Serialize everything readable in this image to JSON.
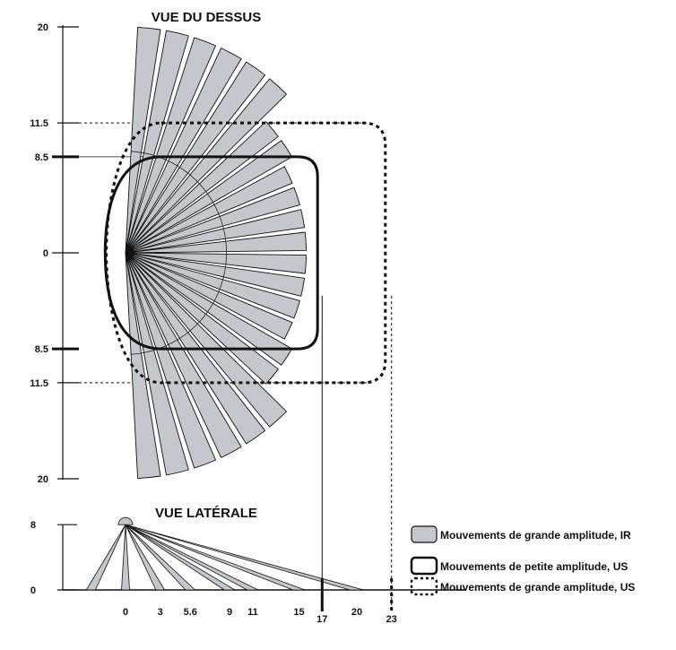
{
  "top_view": {
    "title": "VUE DU DESSUS",
    "y_ticks": [
      {
        "value": 20,
        "label": "20"
      },
      {
        "value": 11.5,
        "label": "11.5"
      },
      {
        "value": 8.5,
        "label": "8.5"
      },
      {
        "value": 0,
        "label": "0"
      },
      {
        "value": -8.5,
        "label": "8.5"
      },
      {
        "value": -11.5,
        "label": "11.5"
      },
      {
        "value": -20,
        "label": "20"
      }
    ],
    "ir_beams": {
      "count": 24,
      "min_angle_deg": -84,
      "max_angle_deg": 84,
      "radii": [
        20,
        20,
        20,
        20,
        20,
        20,
        17,
        17,
        16,
        16,
        16,
        16,
        16,
        16,
        16,
        16,
        17,
        17,
        20,
        20,
        20,
        20,
        20,
        20
      ],
      "mid_arc_radius": 9
    },
    "us_small_range": {
      "forward": 17,
      "half_width": 8.5
    },
    "us_large_range": {
      "forward": 23,
      "half_width": 11.5
    }
  },
  "side_view": {
    "title": "VUE LATÉRALE",
    "sensor_height": 8,
    "y_ticks": [
      {
        "value": 8,
        "label": "8"
      },
      {
        "value": 0,
        "label": "0"
      }
    ],
    "beam_ends": [
      -3,
      0,
      3,
      5.6,
      9,
      11,
      15,
      20
    ],
    "x_ticks": [
      {
        "value": 0,
        "label": "0"
      },
      {
        "value": 3,
        "label": "3"
      },
      {
        "value": 5.6,
        "label": "5.6"
      },
      {
        "value": 9,
        "label": "9"
      },
      {
        "value": 11,
        "label": "11"
      },
      {
        "value": 15,
        "label": "15"
      },
      {
        "value": 17,
        "label": "17"
      },
      {
        "value": 20,
        "label": "20"
      },
      {
        "value": 23,
        "label": "23"
      }
    ]
  },
  "legend": [
    {
      "label": "Mouvements de grande amplitude, IR",
      "style": "fill"
    },
    {
      "label": "Mouvements de petite amplitude, US",
      "style": "solid"
    },
    {
      "label": "Mouvements de grande amplitude, US",
      "style": "dashed"
    }
  ],
  "colors": {
    "beam_fill": "#c4c8cc",
    "ink": "#111111"
  }
}
